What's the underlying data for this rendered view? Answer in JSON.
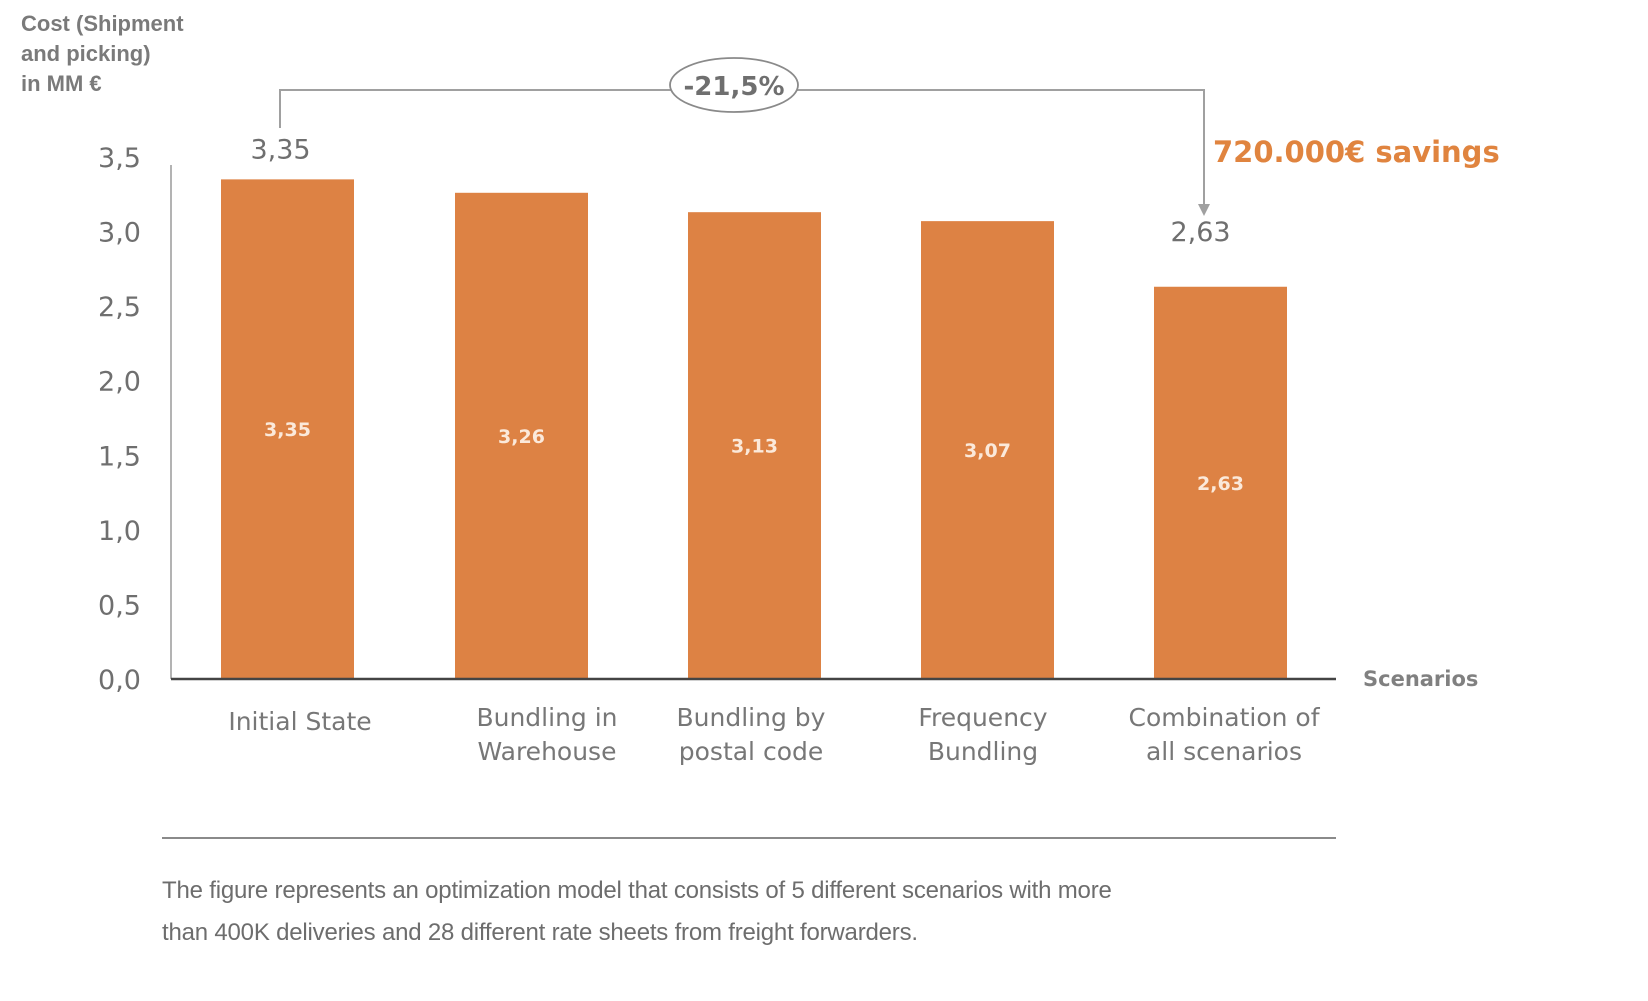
{
  "chart_data": {
    "type": "bar",
    "ylabel": "Cost (Shipment and picking) in MM €",
    "ylabel_lines": [
      "Cost (Shipment",
      "and picking)",
      "in MM €"
    ],
    "xlabel": "Scenarios",
    "ylim": [
      0,
      3.5
    ],
    "yticks": [
      0,
      0.5,
      1.0,
      1.5,
      2.0,
      2.5,
      3.0,
      3.5
    ],
    "ytick_labels": [
      "0,0",
      "0,5",
      "1,0",
      "1,5",
      "2,0",
      "2,5",
      "3,0",
      "3,5"
    ],
    "categories": [
      [
        "Initial State"
      ],
      [
        "Bundling in",
        "Warehouse"
      ],
      [
        "Bundling by",
        "postal code"
      ],
      [
        "Frequency",
        "Bundling"
      ],
      [
        "Combination of",
        "all scenarios"
      ]
    ],
    "values": [
      3.35,
      3.26,
      3.13,
      3.07,
      2.63
    ],
    "value_labels": [
      "3,35",
      "3,26",
      "3,13",
      "3,07",
      "2,63"
    ],
    "top_labels": [
      "3,35",
      "",
      "",
      "",
      "2,63"
    ],
    "grid": false,
    "annotations": {
      "change_label": "-21,5%",
      "change_from_index": 0,
      "change_to_index": 4,
      "savings_label": "720.000€ savings"
    },
    "colors": {
      "bar": "#dd8244",
      "bar_label": "#fbe9da",
      "axis_text": "#6f6f6f",
      "savings": "#e0843f"
    }
  },
  "caption": {
    "line1": "The figure represents an optimization model that consists of 5 different scenarios with more",
    "line2": "than 400K deliveries and 28 different rate sheets from freight forwarders."
  }
}
